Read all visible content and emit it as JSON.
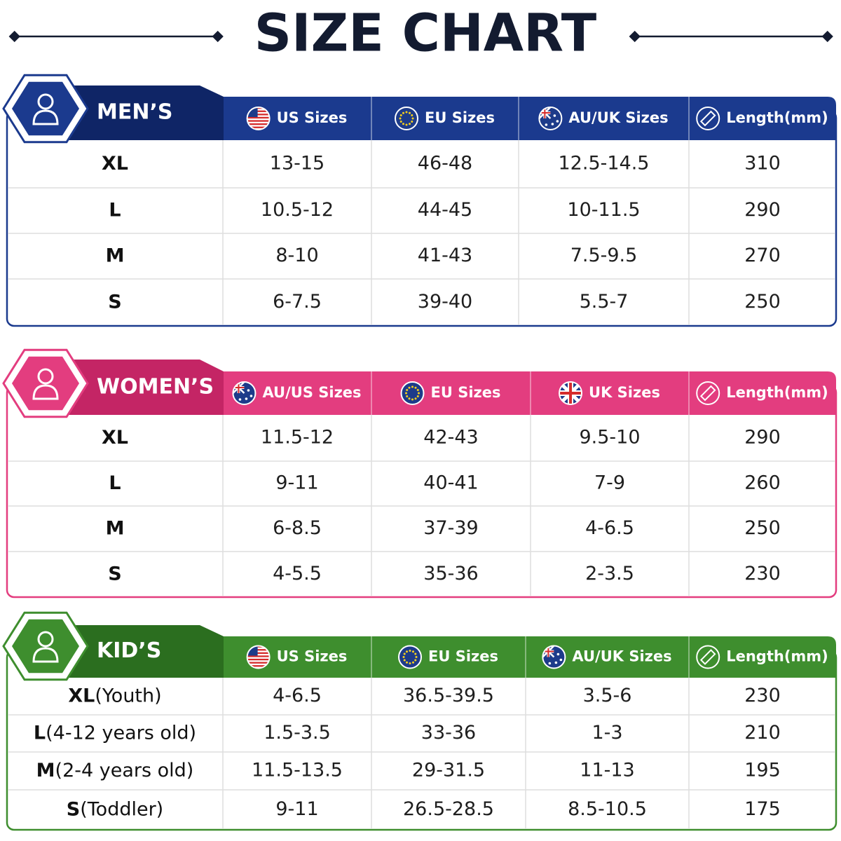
{
  "title": "SIZE CHART",
  "sections": [
    {
      "label": "MEN’S",
      "headers": [
        "US Sizes",
        "EU Sizes",
        "AU/UK Sizes",
        "Length(mm)"
      ],
      "rows": [
        {
          "size": "XL",
          "cells": [
            "13-15",
            "46-48",
            "12.5-14.5",
            "310"
          ]
        },
        {
          "size": "L",
          "cells": [
            "10.5-12",
            "44-45",
            "10-11.5",
            "290"
          ]
        },
        {
          "size": "M",
          "cells": [
            "8-10",
            "41-43",
            "7.5-9.5",
            "270"
          ]
        },
        {
          "size": "S",
          "cells": [
            "6-7.5",
            "39-40",
            "5.5-7",
            "250"
          ]
        }
      ]
    },
    {
      "label": "WOMEN’S",
      "headers": [
        "AU/US Sizes",
        "EU Sizes",
        "UK Sizes",
        "Length(mm)"
      ],
      "rows": [
        {
          "size": "XL",
          "cells": [
            "11.5-12",
            "42-43",
            "9.5-10",
            "290"
          ]
        },
        {
          "size": "L",
          "cells": [
            "9-11",
            "40-41",
            "7-9",
            "260"
          ]
        },
        {
          "size": "M",
          "cells": [
            "6-8.5",
            "37-39",
            "4-6.5",
            "250"
          ]
        },
        {
          "size": "S",
          "cells": [
            "4-5.5",
            "35-36",
            "2-3.5",
            "230"
          ]
        }
      ]
    },
    {
      "label": "KID’S",
      "headers": [
        "US Sizes",
        "EU Sizes",
        "AU/UK Sizes",
        "Length(mm)"
      ],
      "rows": [
        {
          "size": "XL",
          "note": "(Youth)",
          "cells": [
            "4-6.5",
            "36.5-39.5",
            "3.5-6",
            "230"
          ]
        },
        {
          "size": "L",
          "note": "(4-12 years old)",
          "cells": [
            "1.5-3.5",
            "33-36",
            "1-3",
            "210"
          ]
        },
        {
          "size": "M",
          "note": "(2-4 years old)",
          "cells": [
            "11.5-13.5",
            "29-31.5",
            "11-13",
            "195"
          ]
        },
        {
          "size": "S",
          "note": "(Toddler)",
          "cells": [
            "9-11",
            "26.5-28.5",
            "8.5-10.5",
            "175"
          ]
        }
      ]
    }
  ]
}
